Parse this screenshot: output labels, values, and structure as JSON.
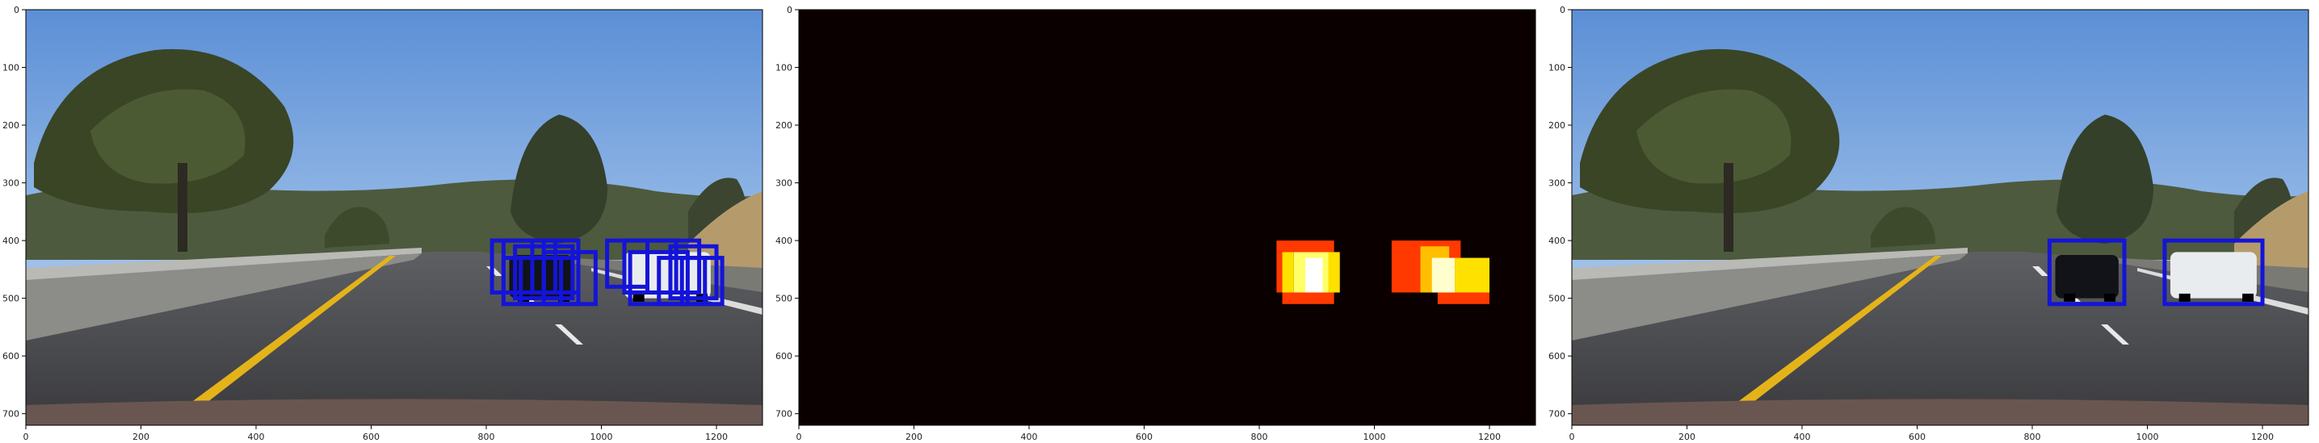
{
  "figure": {
    "panels": [
      {
        "id": "detections",
        "kind": "photo-with-boxes",
        "x_ticks": [
          "0",
          "200",
          "400",
          "600",
          "800",
          "1000",
          "1200"
        ],
        "y_ticks": [
          "0",
          "100",
          "200",
          "300",
          "400",
          "500",
          "600",
          "700"
        ],
        "box_color": "#1414d8"
      },
      {
        "id": "heatmap",
        "kind": "heatmap",
        "x_ticks": [
          "0",
          "200",
          "400",
          "600",
          "800",
          "1000",
          "1200"
        ],
        "y_ticks": [
          "0",
          "100",
          "200",
          "300",
          "400",
          "500",
          "600",
          "700"
        ],
        "background_color": "#0b0000"
      },
      {
        "id": "final",
        "kind": "photo-with-boxes",
        "x_ticks": [
          "0",
          "200",
          "400",
          "600",
          "800",
          "1000",
          "1200"
        ],
        "y_ticks": [
          "0",
          "100",
          "200",
          "300",
          "400",
          "500",
          "600",
          "700"
        ],
        "box_color": "#1414d8"
      }
    ]
  },
  "chart_data": [
    {
      "type": "image",
      "panel": "detections",
      "xlim": [
        0,
        1280
      ],
      "ylim": [
        720,
        0
      ],
      "boxes": [
        {
          "x1": 810,
          "y1": 400,
          "x2": 900,
          "y2": 490
        },
        {
          "x1": 830,
          "y1": 400,
          "x2": 920,
          "y2": 490
        },
        {
          "x1": 850,
          "y1": 410,
          "x2": 950,
          "y2": 500
        },
        {
          "x1": 880,
          "y1": 400,
          "x2": 960,
          "y2": 490
        },
        {
          "x1": 830,
          "y1": 430,
          "x2": 930,
          "y2": 510
        },
        {
          "x1": 860,
          "y1": 430,
          "x2": 960,
          "y2": 510
        },
        {
          "x1": 900,
          "y1": 420,
          "x2": 990,
          "y2": 510
        },
        {
          "x1": 1010,
          "y1": 400,
          "x2": 1080,
          "y2": 480
        },
        {
          "x1": 1040,
          "y1": 400,
          "x2": 1130,
          "y2": 490
        },
        {
          "x1": 1080,
          "y1": 400,
          "x2": 1170,
          "y2": 490
        },
        {
          "x1": 1050,
          "y1": 420,
          "x2": 1150,
          "y2": 510
        },
        {
          "x1": 1120,
          "y1": 410,
          "x2": 1200,
          "y2": 500
        },
        {
          "x1": 1140,
          "y1": 430,
          "x2": 1210,
          "y2": 510
        },
        {
          "x1": 1100,
          "y1": 430,
          "x2": 1180,
          "y2": 510
        }
      ]
    },
    {
      "type": "heatmap",
      "panel": "heatmap",
      "xlim": [
        0,
        1280
      ],
      "ylim": [
        720,
        0
      ],
      "colormap": "hot",
      "cells": [
        {
          "x": 830,
          "y": 400,
          "w": 100,
          "h": 20,
          "v": 0.45
        },
        {
          "x": 830,
          "y": 420,
          "w": 10,
          "h": 70,
          "v": 0.45
        },
        {
          "x": 840,
          "y": 420,
          "w": 20,
          "h": 70,
          "v": 0.7
        },
        {
          "x": 860,
          "y": 420,
          "w": 60,
          "h": 70,
          "v": 0.85
        },
        {
          "x": 880,
          "y": 430,
          "w": 30,
          "h": 60,
          "v": 1.0
        },
        {
          "x": 920,
          "y": 420,
          "w": 20,
          "h": 70,
          "v": 0.7
        },
        {
          "x": 840,
          "y": 490,
          "w": 90,
          "h": 20,
          "v": 0.45
        },
        {
          "x": 1030,
          "y": 400,
          "w": 120,
          "h": 90,
          "v": 0.45
        },
        {
          "x": 1080,
          "y": 410,
          "w": 50,
          "h": 80,
          "v": 0.65
        },
        {
          "x": 1100,
          "y": 430,
          "w": 40,
          "h": 60,
          "v": 0.95
        },
        {
          "x": 1140,
          "y": 430,
          "w": 60,
          "h": 70,
          "v": 0.7
        },
        {
          "x": 1110,
          "y": 490,
          "w": 90,
          "h": 20,
          "v": 0.45
        }
      ]
    },
    {
      "type": "image",
      "panel": "final",
      "xlim": [
        0,
        1280
      ],
      "ylim": [
        720,
        0
      ],
      "boxes": [
        {
          "x1": 830,
          "y1": 400,
          "x2": 960,
          "y2": 510
        },
        {
          "x1": 1030,
          "y1": 400,
          "x2": 1200,
          "y2": 510
        }
      ]
    }
  ]
}
